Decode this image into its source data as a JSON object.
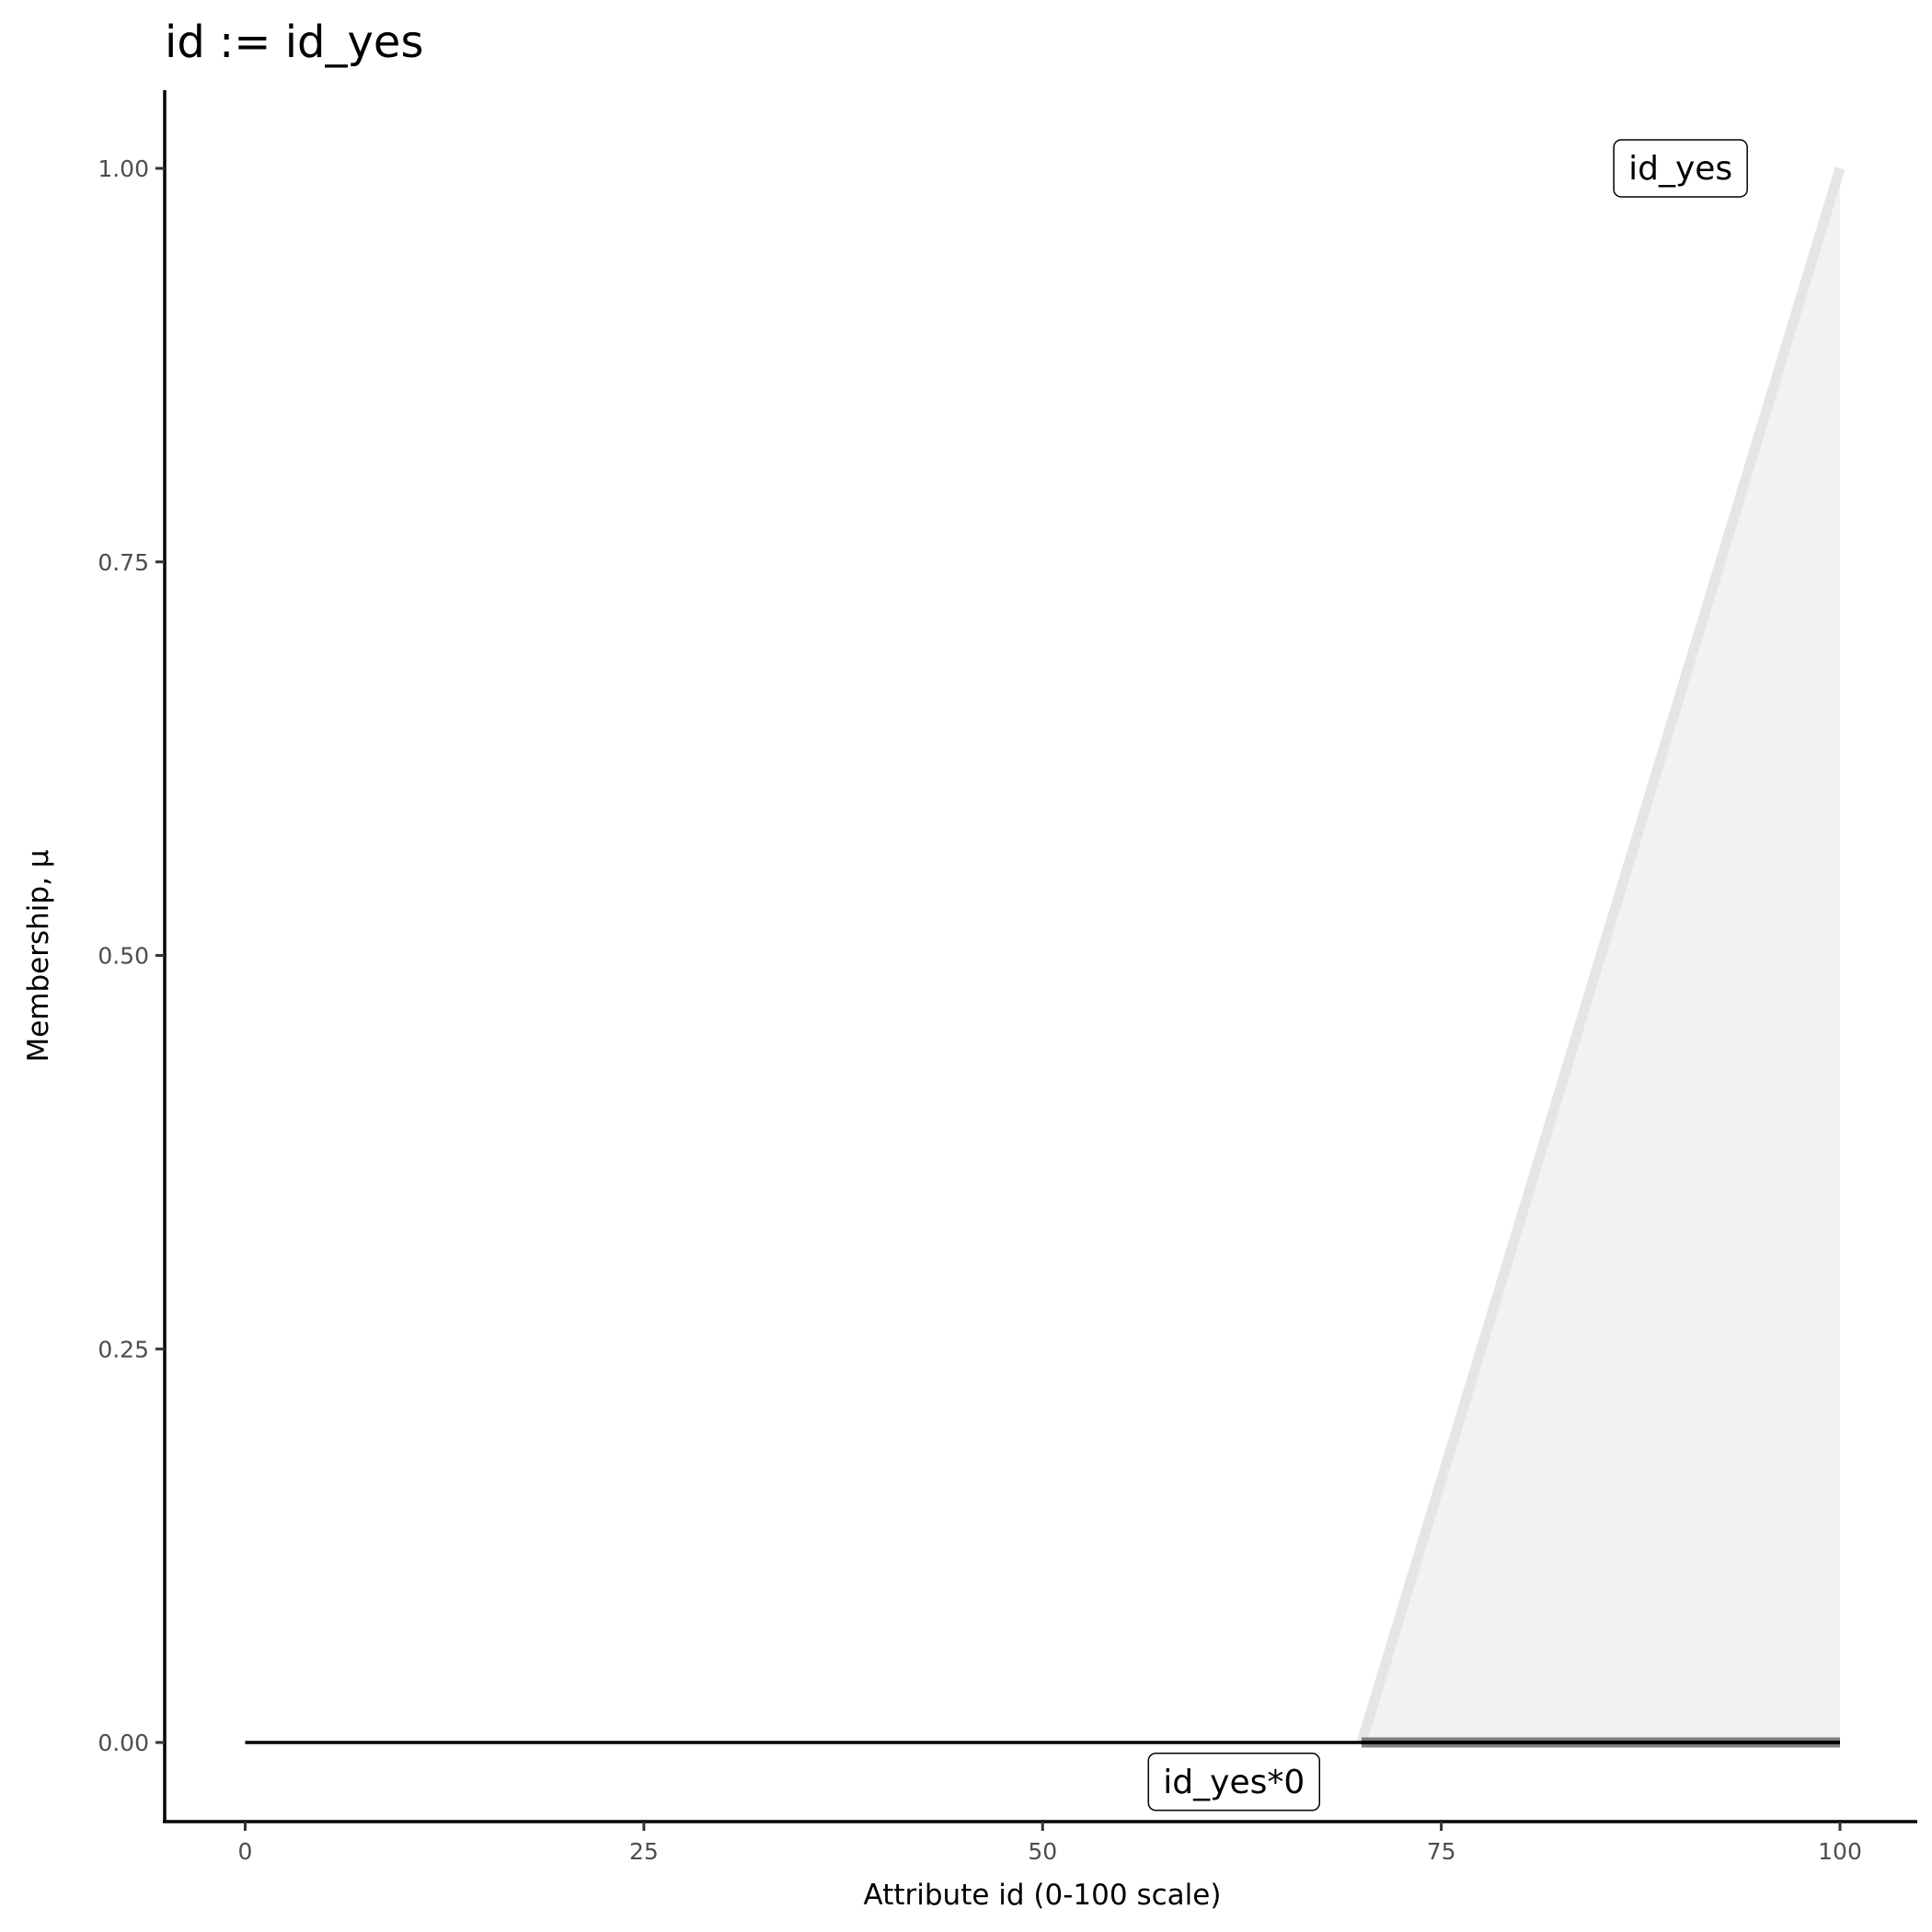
{
  "chart_data": {
    "type": "area",
    "title": "id := id_yes",
    "xlabel": "Attribute id (0-100 scale)",
    "ylabel": "Membership, μ",
    "xlim": [
      -5,
      105
    ],
    "ylim": [
      -0.05,
      1.05
    ],
    "x_ticks": [
      0,
      25,
      50,
      75,
      100
    ],
    "x_tick_labels": [
      "0",
      "25",
      "50",
      "75",
      "100"
    ],
    "y_ticks": [
      0,
      0.25,
      0.5,
      0.75,
      1
    ],
    "y_tick_labels": [
      "0.00",
      "0.25",
      "0.50",
      "0.75",
      "1.00"
    ],
    "grid": false,
    "series": [
      {
        "name": "id_yes",
        "x": [
          70,
          100
        ],
        "y": [
          0,
          1
        ],
        "color": "#e5e5e5",
        "fill": "#f2f2f2"
      },
      {
        "name": "id_yes*0",
        "x": [
          0,
          100
        ],
        "y": [
          0,
          0
        ],
        "color": "#000000",
        "highlight_x": [
          70,
          100
        ],
        "highlight_color": "#555555"
      }
    ],
    "annotations": [
      {
        "text": "id_yes",
        "x": 90,
        "y": 1.0
      },
      {
        "text": "id_yes*0",
        "x": 62,
        "y": -0.025
      }
    ]
  }
}
